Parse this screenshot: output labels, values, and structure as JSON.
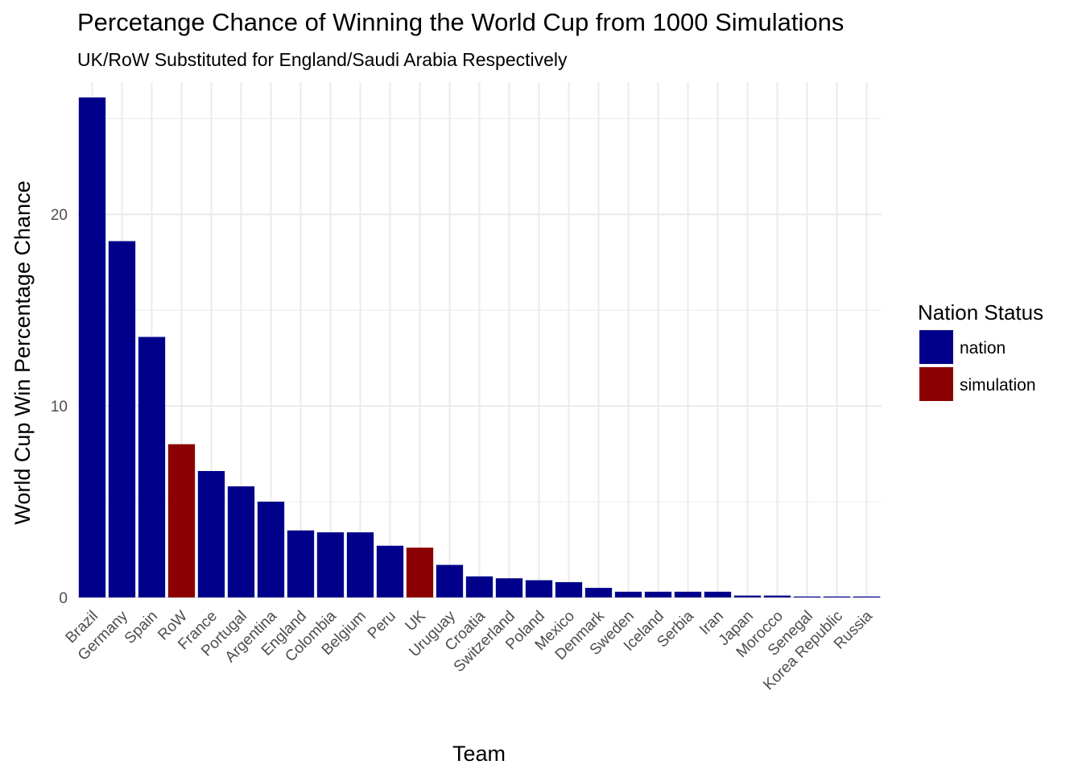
{
  "title": "Percetange Chance of Winning the World Cup from 1000 Simulations",
  "subtitle": "UK/RoW Substituted for England/Saudi Arabia Respectively",
  "chart_data": {
    "type": "bar",
    "title": "Percetange Chance of Winning the World Cup from 1000 Simulations",
    "subtitle": "UK/RoW Substituted for England/Saudi Arabia Respectively",
    "xlabel": "Team",
    "ylabel": "World Cup Win Percentage Chance",
    "ylim": [
      0,
      26.9
    ],
    "yticks": [
      0,
      10,
      20
    ],
    "grid": true,
    "legend": {
      "title": "Nation Status",
      "position": "right",
      "entries": [
        {
          "label": "nation",
          "color": "#00008B"
        },
        {
          "label": "simulation",
          "color": "#8B0000"
        }
      ]
    },
    "categories": [
      "Brazil",
      "Germany",
      "Spain",
      "RoW",
      "France",
      "Portugal",
      "Argentina",
      "England",
      "Colombia",
      "Belgium",
      "Peru",
      "UK",
      "Uruguay",
      "Croatia",
      "Switzerland",
      "Poland",
      "Mexico",
      "Denmark",
      "Sweden",
      "Iceland",
      "Serbia",
      "Iran",
      "Japan",
      "Morocco",
      "Senegal",
      "Korea Republic",
      "Russia"
    ],
    "values": [
      26.1,
      18.6,
      13.6,
      8.0,
      6.6,
      5.8,
      5.0,
      3.5,
      3.4,
      3.4,
      2.7,
      2.6,
      1.7,
      1.1,
      1.0,
      0.9,
      0.8,
      0.5,
      0.3,
      0.3,
      0.3,
      0.3,
      0.1,
      0.1,
      0.05,
      0.05,
      0.05
    ],
    "status": [
      "nation",
      "nation",
      "nation",
      "simulation",
      "nation",
      "nation",
      "nation",
      "nation",
      "nation",
      "nation",
      "nation",
      "simulation",
      "nation",
      "nation",
      "nation",
      "nation",
      "nation",
      "nation",
      "nation",
      "nation",
      "nation",
      "nation",
      "nation",
      "nation",
      "nation",
      "nation",
      "nation"
    ]
  }
}
